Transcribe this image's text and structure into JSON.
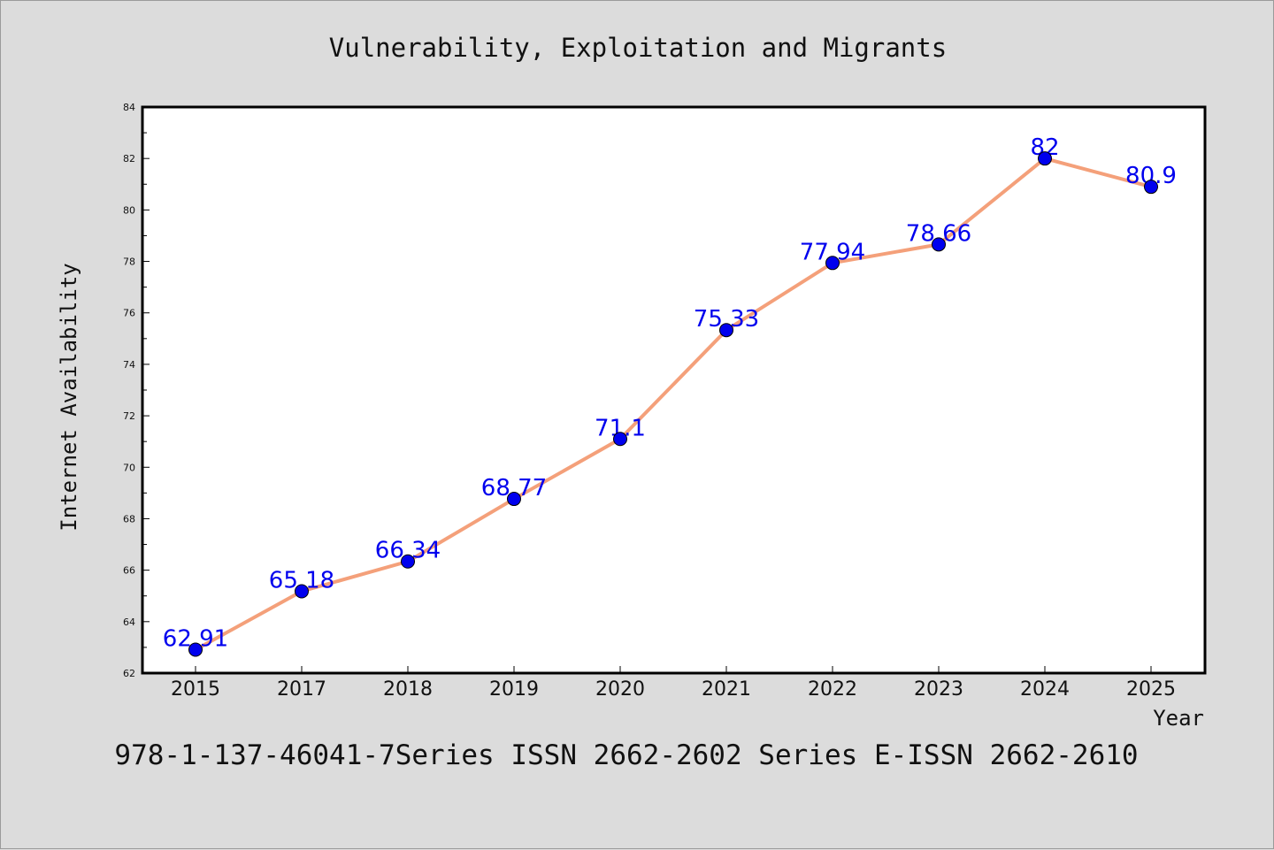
{
  "chart_data": {
    "type": "line",
    "title": "Vulnerability, Exploitation and Migrants",
    "xlabel": "Year",
    "ylabel": "Internet Availability",
    "categories": [
      "2015",
      "2017",
      "2018",
      "2019",
      "2020",
      "2021",
      "2022",
      "2023",
      "2024",
      "2025"
    ],
    "series": [
      {
        "values": [
          62.91,
          65.18,
          66.34,
          68.77,
          71.1,
          75.33,
          77.94,
          78.66,
          82,
          80.9
        ],
        "data_labels": [
          "62.91",
          "65.18",
          "66.34",
          "68.77",
          "71.1",
          "75.33",
          "77.94",
          "78.66",
          "82",
          "80.9"
        ]
      }
    ],
    "ylim": [
      62,
      84
    ],
    "yticks": [
      "62",
      "64",
      "66",
      "68",
      "70",
      "72",
      "74",
      "76",
      "78",
      "80",
      "82",
      "84"
    ],
    "grid": false,
    "line_color": "#f4a07a",
    "marker_color": "#0000ee",
    "label_color": "#0000ee"
  },
  "footer": "978-1-137-46041-7Series ISSN 2662-2602 Series E-ISSN 2662-2610",
  "colors": {
    "background": "#dcdcdc",
    "plot_background": "#ffffff",
    "axis": "#000000"
  }
}
